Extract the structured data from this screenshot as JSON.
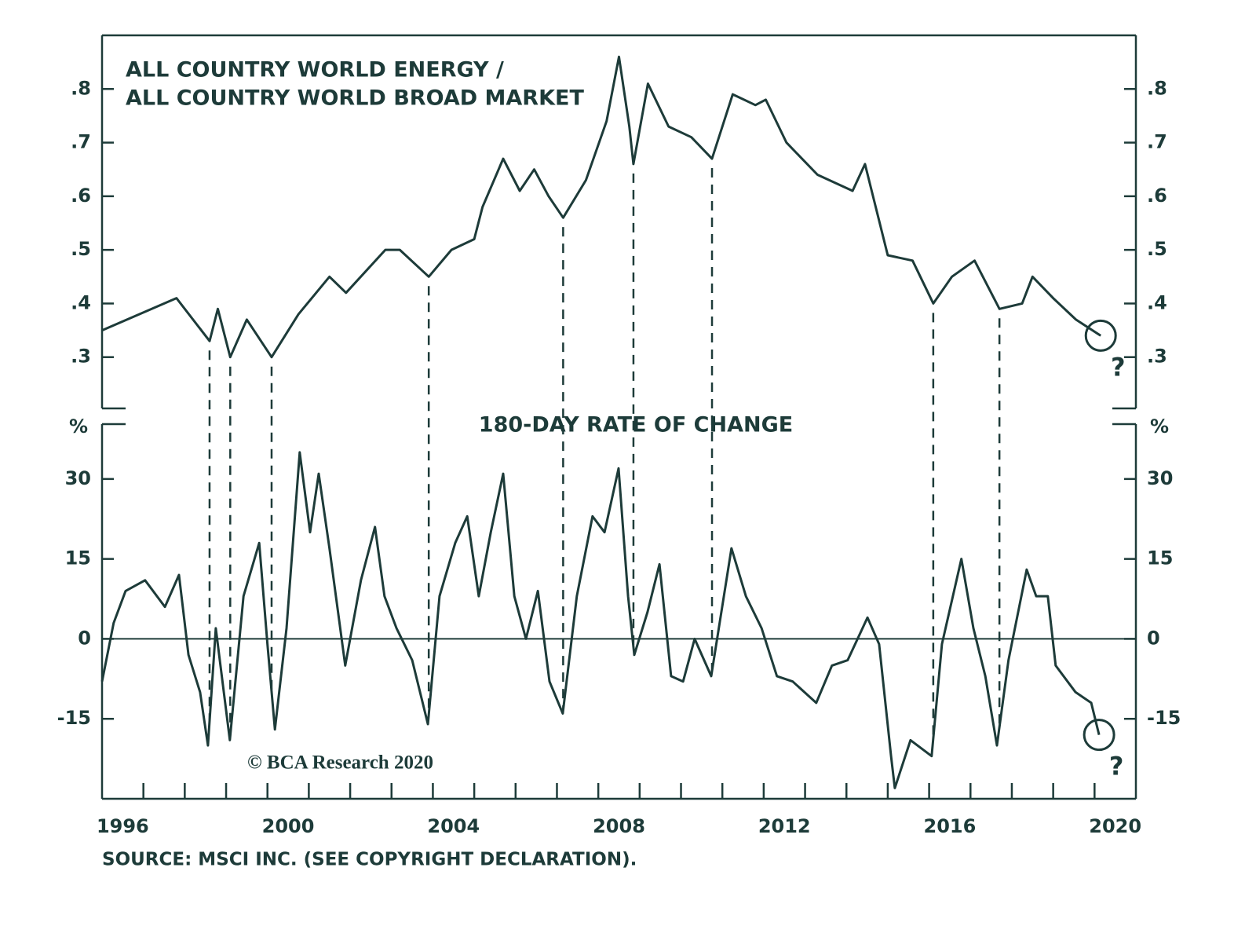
{
  "chart_data": [
    {
      "type": "line",
      "title": [
        "ALL COUNTRY WORLD ENERGY /",
        "ALL COUNTRY WORLD BROAD MARKET"
      ],
      "x": [
        1996.0,
        1997.8,
        1998.6,
        1998.8,
        1999.1,
        1999.5,
        2000.1,
        2000.75,
        2001.5,
        2001.9,
        2002.85,
        2003.2,
        2003.9,
        2004.45,
        2005.0,
        2005.2,
        2005.7,
        2006.1,
        2006.45,
        2006.8,
        2007.15,
        2007.7,
        2008.2,
        2008.5,
        2008.75,
        2008.85,
        2009.2,
        2009.7,
        2010.25,
        2010.75,
        2011.25,
        2011.8,
        2012.05,
        2012.55,
        2013.3,
        2014.15,
        2014.45,
        2015.0,
        2015.6,
        2016.1,
        2016.55,
        2017.1,
        2017.7,
        2018.25,
        2018.5,
        2019.0,
        2019.55,
        2020.15
      ],
      "values": [
        0.35,
        0.41,
        0.33,
        0.39,
        0.3,
        0.37,
        0.3,
        0.38,
        0.45,
        0.42,
        0.5,
        0.5,
        0.45,
        0.5,
        0.52,
        0.58,
        0.67,
        0.61,
        0.65,
        0.6,
        0.56,
        0.63,
        0.74,
        0.86,
        0.73,
        0.66,
        0.81,
        0.73,
        0.71,
        0.67,
        0.79,
        0.77,
        0.78,
        0.7,
        0.64,
        0.61,
        0.66,
        0.49,
        0.48,
        0.4,
        0.45,
        0.48,
        0.39,
        0.4,
        0.45,
        0.41,
        0.37,
        0.34
      ],
      "color": "#1d3b39",
      "xlim": [
        1996,
        2021
      ],
      "ylim": [
        0.2,
        0.9
      ],
      "yticks": [
        {
          "value": 0.3,
          "label": ".3"
        },
        {
          "value": 0.4,
          "label": ".4"
        },
        {
          "value": 0.5,
          "label": ".5"
        },
        {
          "value": 0.6,
          "label": ".6"
        },
        {
          "value": 0.7,
          "label": ".7"
        },
        {
          "value": 0.8,
          "label": ".8"
        }
      ],
      "vlines": [
        1998.6,
        1999.1,
        2000.1,
        2003.9,
        2007.15,
        2008.85,
        2010.75,
        2016.1,
        2017.7
      ],
      "annotation": "?"
    },
    {
      "type": "line",
      "title": "180-DAY RATE OF CHANGE",
      "unit": "%",
      "x": [
        1996.0,
        1996.28,
        1996.57,
        1997.04,
        1997.52,
        1997.86,
        1998.09,
        1998.37,
        1998.56,
        1998.75,
        1999.09,
        1999.42,
        1999.8,
        2000.0,
        2000.18,
        2000.46,
        2000.78,
        2001.03,
        2001.24,
        2001.5,
        2001.88,
        2002.26,
        2002.6,
        2002.83,
        2003.12,
        2003.5,
        2003.88,
        2004.16,
        2004.54,
        2004.83,
        2005.11,
        2005.4,
        2005.7,
        2005.97,
        2006.25,
        2006.54,
        2006.82,
        2007.14,
        2007.48,
        2007.86,
        2008.15,
        2008.49,
        2008.72,
        2008.87,
        2009.19,
        2009.48,
        2009.76,
        2010.05,
        2010.33,
        2010.73,
        2011.22,
        2011.57,
        2011.95,
        2012.32,
        2012.7,
        2013.27,
        2013.65,
        2014.03,
        2014.51,
        2014.79,
        2015.08,
        2015.17,
        2015.55,
        2016.06,
        2016.31,
        2016.78,
        2017.07,
        2017.36,
        2017.64,
        2017.92,
        2018.36,
        2018.59,
        2018.87,
        2019.06,
        2019.54,
        2019.92,
        2020.11
      ],
      "values": [
        -8,
        3,
        9,
        11,
        6,
        12,
        -3,
        -10,
        -20,
        2,
        -19,
        8,
        18,
        -1,
        -17,
        2,
        35,
        20,
        31,
        17,
        -5,
        11,
        21,
        8,
        2,
        -4,
        -16,
        8,
        18,
        23,
        8,
        20,
        31,
        8,
        0,
        9,
        -8,
        -14,
        8,
        23,
        20,
        32,
        8,
        -3,
        5,
        14,
        -7,
        -8,
        0,
        -7,
        17,
        8,
        2,
        -7,
        -8,
        -12,
        -5,
        -4,
        4,
        -1,
        -22,
        -28,
        -19,
        -22,
        -1,
        15,
        2,
        -7,
        -20,
        -4,
        13,
        8,
        8,
        -5,
        -10,
        -12,
        -18
      ],
      "color": "#1d3b39",
      "xlim": [
        1996,
        2021
      ],
      "ylim": [
        -30,
        40
      ],
      "yticks": [
        -15,
        0,
        15,
        30
      ],
      "baseline": 0,
      "xticks": [
        {
          "value": 1996.5,
          "label": "1996"
        },
        {
          "value": 2000.5,
          "label": "2000"
        },
        {
          "value": 2004.5,
          "label": "2004"
        },
        {
          "value": 2008.5,
          "label": "2008"
        },
        {
          "value": 2012.5,
          "label": "2012"
        },
        {
          "value": 2016.5,
          "label": "2016"
        },
        {
          "value": 2020.5,
          "label": "2020"
        }
      ],
      "minor_xticks": [
        1997,
        1998,
        1999,
        2000,
        2001,
        2002,
        2003,
        2004,
        2005,
        2006,
        2007,
        2008,
        2009,
        2010,
        2011,
        2012,
        2013,
        2014,
        2015,
        2016,
        2017,
        2018,
        2019,
        2020
      ],
      "annotation": "?",
      "watermark": "© BCA Research 2020"
    }
  ],
  "source": "SOURCE: MSCI INC. (SEE COPYRIGHT DECLARATION)."
}
